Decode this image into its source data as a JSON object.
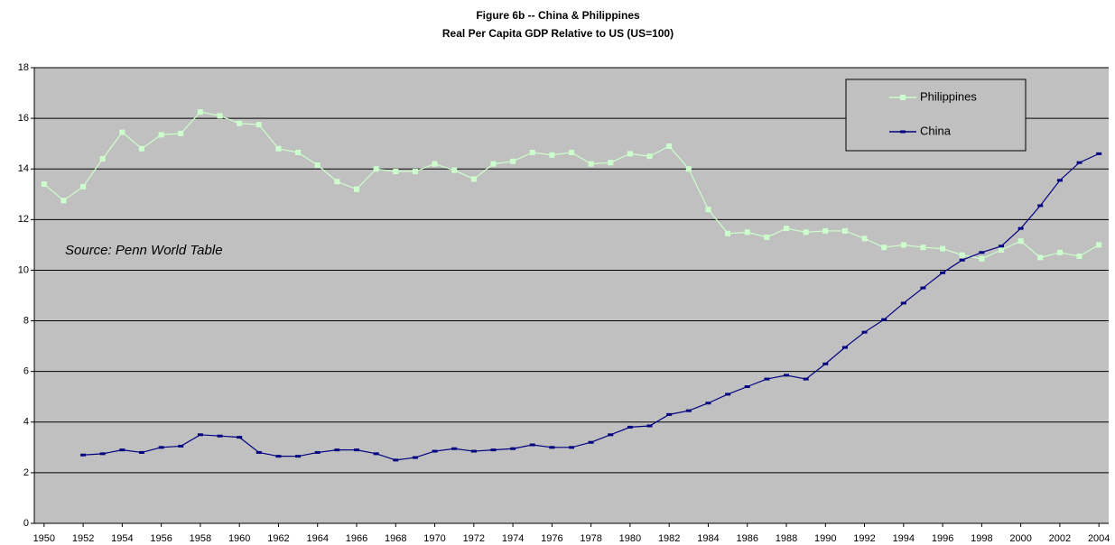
{
  "chart_data": {
    "type": "line",
    "title": "Figure 6b -- China & Philippines",
    "subtitle": "Real Per Capita GDP Relative to US (US=100)",
    "annotation": "Source: Penn World Table",
    "x": [
      1950,
      1951,
      1952,
      1953,
      1954,
      1955,
      1956,
      1957,
      1958,
      1959,
      1960,
      1961,
      1962,
      1963,
      1964,
      1965,
      1966,
      1967,
      1968,
      1969,
      1970,
      1971,
      1972,
      1973,
      1974,
      1975,
      1976,
      1977,
      1978,
      1979,
      1980,
      1981,
      1982,
      1983,
      1984,
      1985,
      1986,
      1987,
      1988,
      1989,
      1990,
      1991,
      1992,
      1993,
      1994,
      1995,
      1996,
      1997,
      1998,
      1999,
      2000,
      2001,
      2002,
      2003,
      2004
    ],
    "series": [
      {
        "name": "Philippines",
        "color": "#ccffcc",
        "values": [
          13.4,
          12.75,
          13.3,
          14.4,
          15.45,
          14.8,
          15.35,
          15.4,
          16.25,
          16.1,
          15.8,
          15.75,
          14.8,
          14.65,
          14.15,
          13.5,
          13.2,
          14.0,
          13.9,
          13.9,
          14.2,
          13.95,
          13.6,
          14.2,
          14.3,
          14.65,
          14.55,
          14.65,
          14.2,
          14.25,
          14.6,
          14.5,
          14.9,
          14.0,
          12.4,
          11.45,
          11.5,
          11.3,
          11.65,
          11.5,
          11.55,
          11.55,
          11.25,
          10.9,
          11.0,
          10.9,
          10.85,
          10.6,
          10.45,
          10.8,
          11.15,
          10.5,
          10.7,
          10.55,
          11.0
        ]
      },
      {
        "name": "China",
        "color": "#000080",
        "values": [
          null,
          null,
          2.7,
          2.75,
          2.9,
          2.8,
          3.0,
          3.05,
          3.5,
          3.45,
          3.4,
          2.8,
          2.65,
          2.65,
          2.8,
          2.9,
          2.9,
          2.75,
          2.5,
          2.6,
          2.85,
          2.95,
          2.85,
          2.9,
          2.95,
          3.1,
          3.0,
          3.0,
          3.2,
          3.5,
          3.8,
          3.85,
          4.3,
          4.45,
          4.75,
          5.1,
          5.4,
          5.7,
          5.85,
          5.7,
          6.3,
          6.95,
          7.55,
          8.05,
          8.7,
          9.3,
          9.9,
          10.4,
          10.7,
          10.95,
          11.65,
          12.55,
          13.55,
          14.25,
          14.6
        ]
      }
    ],
    "xlim": [
      1949.5,
      2004.5
    ],
    "xticks": [
      1950,
      1952,
      1954,
      1956,
      1958,
      1960,
      1962,
      1964,
      1966,
      1968,
      1970,
      1972,
      1974,
      1976,
      1978,
      1980,
      1982,
      1984,
      1986,
      1988,
      1990,
      1992,
      1994,
      1996,
      1998,
      2000,
      2002,
      2004
    ],
    "ylim": [
      0,
      18
    ],
    "yticks": [
      0,
      2,
      4,
      6,
      8,
      10,
      12,
      14,
      16,
      18
    ],
    "grid": true,
    "legend": "top-right",
    "background": "#c0c0c0"
  }
}
